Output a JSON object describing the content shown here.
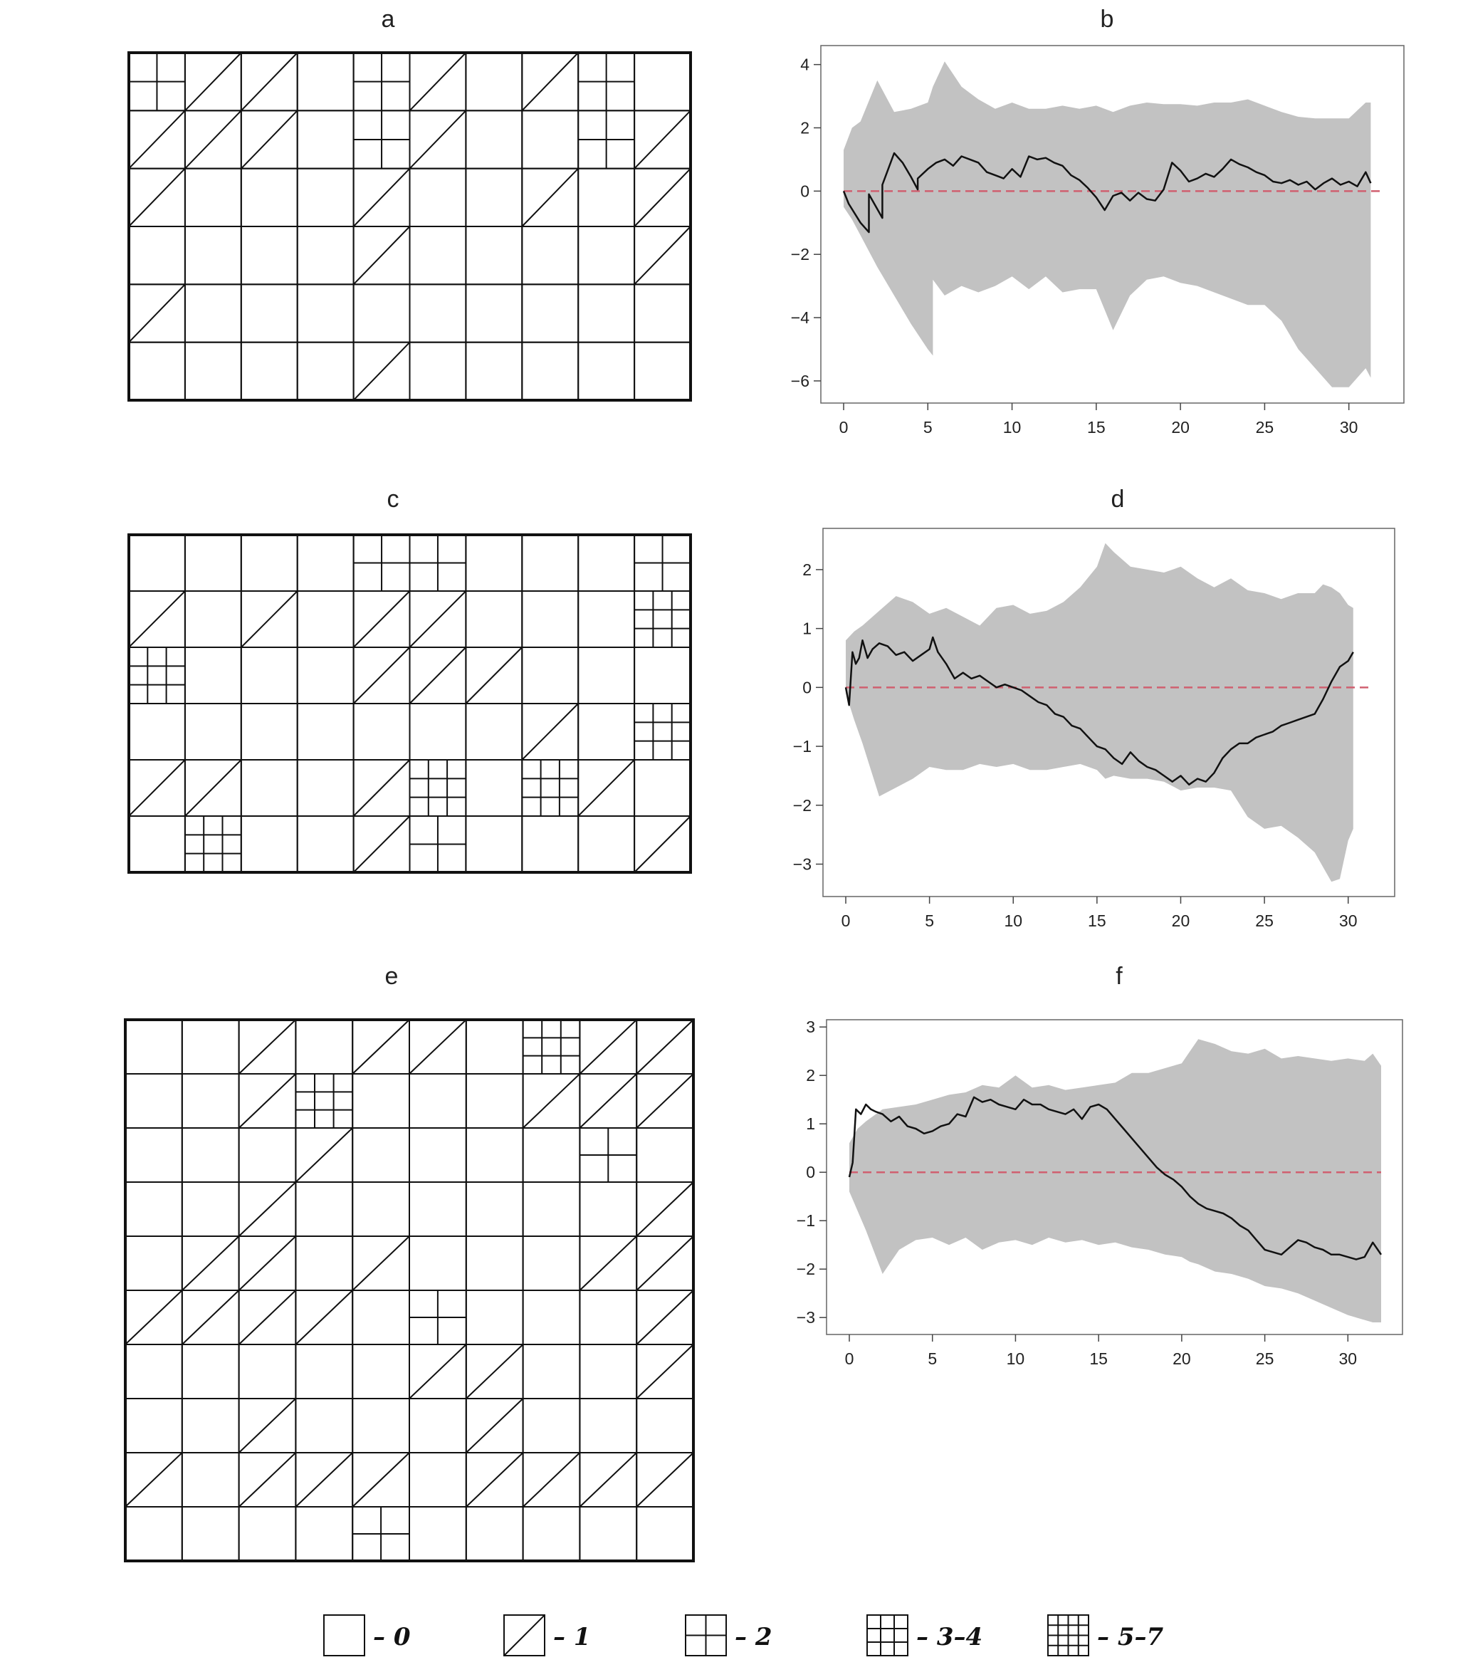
{
  "panels": [
    "a",
    "b",
    "c",
    "d",
    "e",
    "f"
  ],
  "grids": [
    {
      "name": "grid-a",
      "rows": 6,
      "cols": 10,
      "cells": [
        "2110210120",
        "1110210021",
        "1000100101",
        "0000100001",
        "1000000000",
        "0000100000"
      ]
    },
    {
      "name": "grid-c",
      "rows": 6,
      "cols": 10,
      "cells": [
        "0000220002",
        "1010110003",
        "3000111000",
        "0000000103",
        "1100130310",
        "0300120001"
      ]
    },
    {
      "name": "grid-e",
      "rows": 10,
      "cols": 10,
      "cells": [
        "0010110311",
        "0013000111",
        "0001000020",
        "0010000001",
        "0110100011",
        "1111020001",
        "0000011001",
        "0010001000",
        "1011101111",
        "0000200000"
      ]
    }
  ],
  "chart_data": [
    {
      "type": "area",
      "name": "b",
      "xlim": [
        0,
        32
      ],
      "ylim": [
        -6.7,
        4.6
      ],
      "x_ticks": [
        0,
        5,
        10,
        15,
        20,
        25,
        30
      ],
      "y_ticks": [
        -6,
        -4,
        -2,
        0,
        2,
        4
      ],
      "reference_line": 0,
      "series": [
        {
          "x": [
            0,
            0.3,
            1,
            1.5,
            1.5,
            2.3,
            2.3,
            3,
            3.5,
            4,
            4.4,
            4.4,
            5,
            5.5,
            6,
            6.5,
            7,
            7.5,
            8,
            8.5,
            9,
            9.5,
            10,
            10.5,
            11,
            11.5,
            12,
            12.5,
            13,
            13.5,
            14,
            14.5,
            15,
            15.5,
            16,
            16.5,
            17,
            17.5,
            18,
            18.5,
            19,
            19.5,
            20,
            20.5,
            21,
            21.5,
            22,
            22.5,
            23,
            23.5,
            24,
            24.5,
            25,
            25.5,
            26,
            26.5,
            27,
            27.5,
            28,
            28.5,
            29,
            29.5,
            30,
            30.5,
            31,
            31.3
          ],
          "y": [
            0,
            -0.4,
            -1,
            -1.3,
            -0.1,
            -0.85,
            0.2,
            1.2,
            0.9,
            0.45,
            0.05,
            0.4,
            0.7,
            0.9,
            1,
            0.8,
            1.1,
            1,
            0.9,
            0.6,
            0.5,
            0.4,
            0.7,
            0.45,
            1.1,
            1,
            1.05,
            0.9,
            0.8,
            0.5,
            0.35,
            0.1,
            -0.2,
            -0.6,
            -0.15,
            -0.05,
            -0.3,
            -0.05,
            -0.25,
            -0.3,
            0.05,
            0.9,
            0.65,
            0.3,
            0.4,
            0.55,
            0.45,
            0.7,
            1,
            0.85,
            0.75,
            0.6,
            0.5,
            0.3,
            0.25,
            0.35,
            0.2,
            0.3,
            0.05,
            0.25,
            0.4,
            0.2,
            0.3,
            0.15,
            0.6,
            0.25
          ]
        }
      ],
      "band": {
        "x": [
          0,
          0.5,
          1,
          2,
          3,
          4,
          5,
          5.3,
          5.3,
          6,
          7,
          8,
          9,
          10,
          11,
          12,
          13,
          14,
          15,
          16,
          17,
          18,
          19,
          20,
          21,
          22,
          23,
          24,
          25,
          26,
          27,
          28,
          29,
          30,
          31,
          31.3
        ],
        "upper": [
          1.3,
          2,
          2.2,
          3.5,
          2.5,
          2.6,
          2.8,
          3.3,
          3.3,
          4.1,
          3.3,
          2.9,
          2.6,
          2.8,
          2.6,
          2.6,
          2.7,
          2.6,
          2.7,
          2.5,
          2.7,
          2.8,
          2.75,
          2.75,
          2.7,
          2.8,
          2.8,
          2.9,
          2.7,
          2.5,
          2.35,
          2.3,
          2.3,
          2.3,
          2.8,
          2.8
        ],
        "lower": [
          -0.5,
          -0.9,
          -1.4,
          -2.4,
          -3.3,
          -4.2,
          -5,
          -5.2,
          -2.8,
          -3.3,
          -3,
          -3.2,
          -3,
          -2.7,
          -3.1,
          -2.7,
          -3.2,
          -3.1,
          -3.1,
          -4.4,
          -3.3,
          -2.8,
          -2.7,
          -2.9,
          -3,
          -3.2,
          -3.4,
          -3.6,
          -3.6,
          -4.1,
          -5,
          -5.6,
          -6.2,
          -6.2,
          -5.6,
          -5.9
        ]
      }
    },
    {
      "type": "area",
      "name": "d",
      "xlim": [
        0,
        31.5
      ],
      "ylim": [
        -3.55,
        2.7
      ],
      "x_ticks": [
        0,
        5,
        10,
        15,
        20,
        25,
        30
      ],
      "y_ticks": [
        -3,
        -2,
        -1,
        0,
        1,
        2
      ],
      "reference_line": 0,
      "series": [
        {
          "x": [
            0,
            0.2,
            0.4,
            0.6,
            0.8,
            1,
            1.3,
            1.6,
            2,
            2.5,
            3,
            3.5,
            4,
            4.5,
            5,
            5.2,
            5.5,
            6,
            6.5,
            7,
            7.5,
            8,
            8.5,
            9,
            9.5,
            10,
            10.5,
            11,
            11.5,
            12,
            12.5,
            13,
            13.5,
            14,
            14.5,
            15,
            15.5,
            16,
            16.5,
            17,
            17.5,
            18,
            18.5,
            19,
            19.5,
            20,
            20.5,
            21,
            21.5,
            22,
            22.5,
            23,
            23.5,
            24,
            24.5,
            25,
            25.5,
            26,
            26.5,
            27,
            27.5,
            28,
            28.5,
            29,
            29.5,
            30,
            30.3
          ],
          "y": [
            0,
            -0.3,
            0.6,
            0.4,
            0.5,
            0.8,
            0.5,
            0.65,
            0.75,
            0.7,
            0.55,
            0.6,
            0.45,
            0.55,
            0.65,
            0.85,
            0.6,
            0.4,
            0.15,
            0.25,
            0.15,
            0.2,
            0.1,
            0,
            0.05,
            0,
            -0.05,
            -0.15,
            -0.25,
            -0.3,
            -0.45,
            -0.5,
            -0.65,
            -0.7,
            -0.85,
            -1,
            -1.05,
            -1.2,
            -1.3,
            -1.1,
            -1.25,
            -1.35,
            -1.4,
            -1.5,
            -1.6,
            -1.5,
            -1.65,
            -1.55,
            -1.6,
            -1.45,
            -1.2,
            -1.05,
            -0.95,
            -0.95,
            -0.85,
            -0.8,
            -0.75,
            -0.65,
            -0.6,
            -0.55,
            -0.5,
            -0.45,
            -0.2,
            0.1,
            0.35,
            0.45,
            0.6
          ]
        }
      ],
      "band": {
        "x": [
          0,
          0.5,
          1,
          2,
          3,
          4,
          5,
          6,
          7,
          8,
          9,
          10,
          11,
          12,
          13,
          14,
          15,
          15.5,
          16,
          17,
          18,
          19,
          20,
          21,
          22,
          23,
          24,
          25,
          26,
          27,
          28,
          28.5,
          29,
          29.5,
          30,
          30.3
        ],
        "upper": [
          0.8,
          0.95,
          1.05,
          1.3,
          1.55,
          1.45,
          1.25,
          1.35,
          1.2,
          1.05,
          1.35,
          1.4,
          1.25,
          1.3,
          1.45,
          1.7,
          2.05,
          2.45,
          2.3,
          2.05,
          2,
          1.95,
          2.05,
          1.85,
          1.7,
          1.85,
          1.65,
          1.6,
          1.5,
          1.6,
          1.6,
          1.75,
          1.7,
          1.6,
          1.4,
          1.35
        ],
        "lower": [
          -0.1,
          -0.55,
          -0.95,
          -1.85,
          -1.7,
          -1.55,
          -1.35,
          -1.4,
          -1.4,
          -1.3,
          -1.35,
          -1.3,
          -1.4,
          -1.4,
          -1.35,
          -1.3,
          -1.4,
          -1.55,
          -1.5,
          -1.55,
          -1.55,
          -1.6,
          -1.75,
          -1.7,
          -1.7,
          -1.75,
          -2.2,
          -2.4,
          -2.35,
          -2.55,
          -2.8,
          -3.05,
          -3.3,
          -3.25,
          -2.6,
          -2.4
        ]
      }
    },
    {
      "type": "area",
      "name": "f",
      "xlim": [
        0,
        32
      ],
      "ylim": [
        -3.35,
        3.15
      ],
      "x_ticks": [
        0,
        5,
        10,
        15,
        20,
        25,
        30
      ],
      "y_ticks": [
        -3,
        -2,
        -1,
        0,
        1,
        2,
        3
      ],
      "reference_line": 0,
      "series": [
        {
          "x": [
            0,
            0.2,
            0.4,
            0.7,
            1,
            1.3,
            1.6,
            2,
            2.5,
            3,
            3.5,
            4,
            4.5,
            5,
            5.5,
            6,
            6.5,
            7,
            7.5,
            8,
            8.5,
            9,
            9.5,
            10,
            10.5,
            11,
            11.5,
            12,
            12.5,
            13,
            13.5,
            14,
            14.5,
            15,
            15.5,
            16,
            16.5,
            17,
            17.5,
            18,
            18.5,
            19,
            19.5,
            20,
            20.5,
            21,
            21.5,
            22,
            22.5,
            23,
            23.5,
            24,
            24.5,
            25,
            25.5,
            26,
            26.5,
            27,
            27.5,
            28,
            28.5,
            29,
            29.5,
            30,
            30.5,
            31,
            31.5,
            32
          ],
          "y": [
            -0.1,
            0.2,
            1.3,
            1.2,
            1.4,
            1.3,
            1.25,
            1.2,
            1.05,
            1.15,
            0.95,
            0.9,
            0.8,
            0.85,
            0.95,
            1,
            1.2,
            1.15,
            1.55,
            1.45,
            1.5,
            1.4,
            1.35,
            1.3,
            1.5,
            1.4,
            1.4,
            1.3,
            1.25,
            1.2,
            1.3,
            1.1,
            1.35,
            1.4,
            1.3,
            1.1,
            0.9,
            0.7,
            0.5,
            0.3,
            0.1,
            -0.05,
            -0.15,
            -0.3,
            -0.5,
            -0.65,
            -0.75,
            -0.8,
            -0.85,
            -0.95,
            -1.1,
            -1.2,
            -1.4,
            -1.6,
            -1.65,
            -1.7,
            -1.55,
            -1.4,
            -1.45,
            -1.55,
            -1.6,
            -1.7,
            -1.7,
            -1.75,
            -1.8,
            -1.75,
            -1.45,
            -1.7
          ]
        }
      ],
      "band": {
        "x": [
          0,
          0.5,
          1,
          2,
          3,
          4,
          5,
          6,
          7,
          8,
          9,
          10,
          11,
          12,
          13,
          14,
          15,
          16,
          17,
          18,
          19,
          20,
          20.5,
          21,
          22,
          23,
          24,
          25,
          26,
          27,
          28,
          29,
          30,
          31,
          31.5,
          32
        ],
        "upper": [
          0.6,
          0.9,
          1.05,
          1.3,
          1.35,
          1.4,
          1.5,
          1.6,
          1.65,
          1.8,
          1.75,
          2,
          1.75,
          1.8,
          1.7,
          1.75,
          1.8,
          1.85,
          2.05,
          2.05,
          2.15,
          2.25,
          2.5,
          2.75,
          2.65,
          2.5,
          2.45,
          2.55,
          2.35,
          2.4,
          2.35,
          2.3,
          2.35,
          2.3,
          2.45,
          2.2
        ],
        "lower": [
          -0.4,
          -0.8,
          -1.2,
          -2.1,
          -1.6,
          -1.4,
          -1.35,
          -1.5,
          -1.35,
          -1.6,
          -1.45,
          -1.4,
          -1.5,
          -1.35,
          -1.45,
          -1.4,
          -1.5,
          -1.45,
          -1.55,
          -1.6,
          -1.7,
          -1.75,
          -1.85,
          -1.9,
          -2.05,
          -2.1,
          -2.2,
          -2.35,
          -2.4,
          -2.5,
          -2.65,
          -2.8,
          -2.95,
          -3.05,
          -3.1,
          -3.1
        ]
      }
    }
  ],
  "legend": [
    {
      "label": "– 0",
      "lines": 0
    },
    {
      "label": "– 1",
      "lines": 1
    },
    {
      "label": "– 2",
      "lines": 2
    },
    {
      "label": "– 3–4",
      "lines": 3
    },
    {
      "label": "– 5–7",
      "lines": 4
    }
  ],
  "colors": {
    "band": "#c2c2c2",
    "line": "#111111",
    "reference": "#d06070",
    "grid_stroke": "#111111"
  }
}
